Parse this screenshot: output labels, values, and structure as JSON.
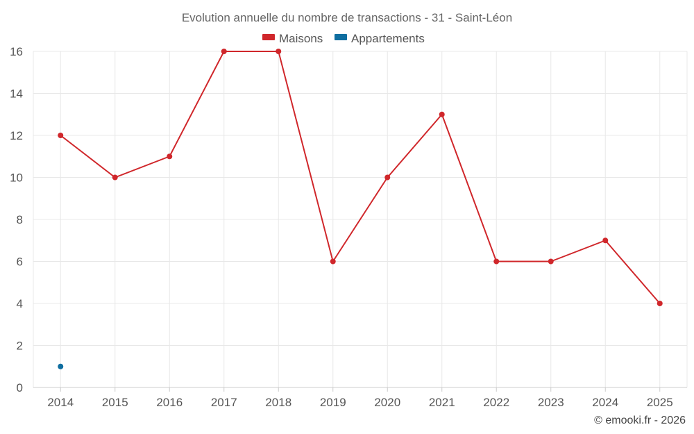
{
  "chart_data": {
    "type": "line",
    "title": "Evolution annuelle du nombre de transactions - 31 - Saint-Léon",
    "categories": [
      "2014",
      "2015",
      "2016",
      "2017",
      "2018",
      "2019",
      "2020",
      "2021",
      "2022",
      "2023",
      "2024",
      "2025"
    ],
    "ylim": [
      0,
      16
    ],
    "yticks": [
      0,
      2,
      4,
      6,
      8,
      10,
      12,
      14,
      16
    ],
    "grid": true,
    "legend_position": "top-center",
    "series": [
      {
        "name": "Maisons",
        "color": "#d0272b",
        "values": [
          12,
          10,
          11,
          16,
          16,
          6,
          10,
          13,
          6,
          6,
          7,
          4
        ]
      },
      {
        "name": "Appartements",
        "color": "#0f6ea0",
        "values": [
          1,
          null,
          null,
          null,
          null,
          null,
          null,
          null,
          null,
          null,
          null,
          null
        ]
      }
    ],
    "xlabel": "",
    "ylabel": ""
  },
  "credit": "© emooki.fr - 2026"
}
